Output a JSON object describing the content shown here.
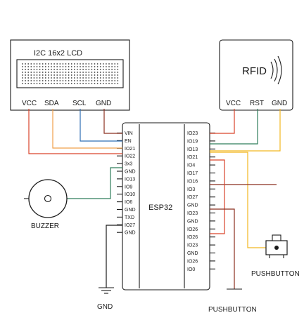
{
  "colors": {
    "red": "#d9432b",
    "orange": "#f0a04b",
    "blue": "#2f6fb3",
    "brown": "#8b2e1f",
    "green": "#2e7d5b",
    "yellow": "#f2b720",
    "black": "#1a1a1a"
  },
  "lcd": {
    "title": "I2C 16x2 LCD",
    "pins": [
      "VCC",
      "SDA",
      "SCL",
      "GND"
    ]
  },
  "rfid": {
    "logo": "RFID",
    "pins": [
      "VCC",
      "RST",
      "GND"
    ]
  },
  "esp32": {
    "label": "ESP32",
    "left_pins": [
      "VIN",
      "EN",
      "IO21",
      "IO22",
      "3x3",
      "GND",
      "IO13",
      "IO9",
      "IO10",
      "IO6",
      "GND",
      "TXD",
      "IO27",
      "GND"
    ],
    "right_pins": [
      "IO23",
      "IO19",
      "IO13",
      "IO21",
      "IO4",
      "IO17",
      "IO16",
      "IO3",
      "IO27",
      "GND",
      "IO23",
      "GND",
      "IO26",
      "IO26",
      "IO23",
      "GND",
      "IO26",
      "IO0"
    ]
  },
  "buzzer": {
    "label": "BUZZER"
  },
  "gnd": {
    "label": "GND"
  },
  "pushbutton_right": {
    "label": "PUSHBUTTON"
  },
  "pushbutton_bottom": {
    "label": "PUSHBUTTON"
  }
}
